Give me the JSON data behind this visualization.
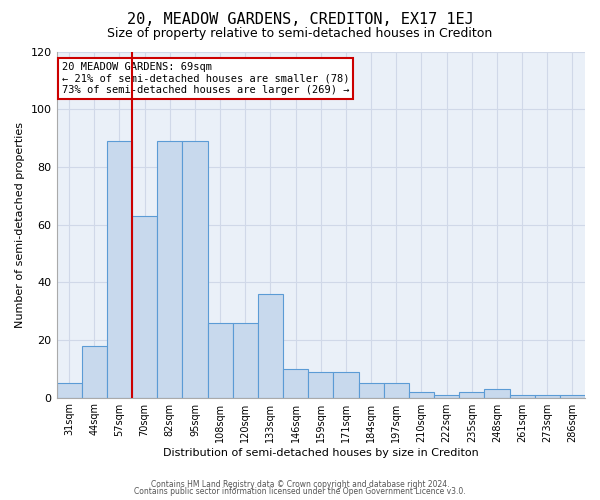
{
  "title": "20, MEADOW GARDENS, CREDITON, EX17 1EJ",
  "subtitle": "Size of property relative to semi-detached houses in Crediton",
  "xlabel": "Distribution of semi-detached houses by size in Crediton",
  "ylabel": "Number of semi-detached properties",
  "categories": [
    "31sqm",
    "44sqm",
    "57sqm",
    "70sqm",
    "82sqm",
    "95sqm",
    "108sqm",
    "120sqm",
    "133sqm",
    "146sqm",
    "159sqm",
    "171sqm",
    "184sqm",
    "197sqm",
    "210sqm",
    "222sqm",
    "235sqm",
    "248sqm",
    "261sqm",
    "273sqm",
    "286sqm"
  ],
  "values": [
    5,
    18,
    89,
    63,
    89,
    89,
    26,
    26,
    36,
    10,
    9,
    9,
    5,
    5,
    2,
    1,
    2,
    3,
    1,
    1,
    1
  ],
  "bar_color": "#c8d9ed",
  "bar_edge_color": "#5b9bd5",
  "ylim": [
    0,
    120
  ],
  "yticks": [
    0,
    20,
    40,
    60,
    80,
    100,
    120
  ],
  "property_size": "69sqm",
  "property_name": "20 MEADOW GARDENS",
  "pct_smaller": 21,
  "count_smaller": 78,
  "pct_larger": 73,
  "count_larger": 269,
  "vline_index": 2.5,
  "annotation_box_color": "#ffffff",
  "annotation_box_edge": "#cc0000",
  "vline_color": "#cc0000",
  "grid_color": "#d0d8e8",
  "background_color": "#eaf0f8",
  "footer_line1": "Contains HM Land Registry data © Crown copyright and database right 2024.",
  "footer_line2": "Contains public sector information licensed under the Open Government Licence v3.0.",
  "title_fontsize": 11,
  "subtitle_fontsize": 9,
  "xlabel_fontsize": 8,
  "ylabel_fontsize": 8
}
